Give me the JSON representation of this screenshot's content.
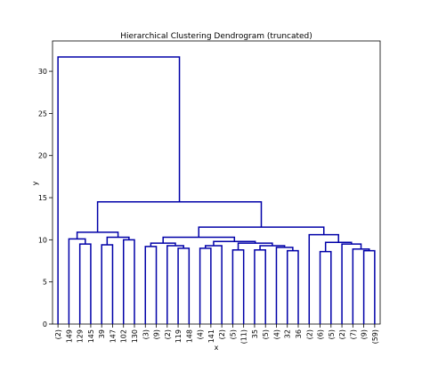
{
  "chart_data": {
    "type": "dendrogram",
    "title": "Hierarchical Clustering Dendrogram (truncated)",
    "x_label": "x",
    "y_label": "y",
    "leaves": [
      "(2)",
      "149",
      "129",
      "145",
      "39",
      "147",
      "102",
      "130",
      "(3)",
      "(9)",
      "(2)",
      "119",
      "148",
      "(4)",
      "141",
      "(2)",
      "(5)",
      "(11)",
      "35",
      "(5)",
      "(4)",
      "32",
      "36",
      "(2)",
      "(6)",
      "(5)",
      "(2)",
      "(7)",
      "(9)",
      "(59)"
    ],
    "linkage": [
      [
        2,
        3,
        9.5
      ],
      [
        1,
        30,
        10.1
      ],
      [
        4,
        5,
        9.4
      ],
      [
        6,
        7,
        10.0
      ],
      [
        32,
        33,
        10.3
      ],
      [
        31,
        34,
        10.9
      ],
      [
        8,
        9,
        9.2
      ],
      [
        11,
        12,
        9.0
      ],
      [
        10,
        37,
        9.3
      ],
      [
        36,
        38,
        9.6
      ],
      [
        13,
        14,
        9.0
      ],
      [
        40,
        15,
        9.3
      ],
      [
        16,
        17,
        8.8
      ],
      [
        18,
        19,
        8.8
      ],
      [
        21,
        22,
        8.7
      ],
      [
        20,
        44,
        9.1
      ],
      [
        43,
        45,
        9.3
      ],
      [
        42,
        46,
        9.6
      ],
      [
        41,
        47,
        9.8
      ],
      [
        39,
        48,
        10.3
      ],
      [
        24,
        25,
        8.6
      ],
      [
        28,
        29,
        8.7
      ],
      [
        27,
        51,
        8.9
      ],
      [
        26,
        52,
        9.5
      ],
      [
        50,
        53,
        9.7
      ],
      [
        23,
        54,
        10.6
      ],
      [
        49,
        55,
        11.5
      ],
      [
        35,
        56,
        14.5
      ],
      [
        0,
        57,
        31.7
      ]
    ],
    "color": "#0000a8",
    "ylim": [
      0,
      33.6
    ],
    "yticks": [
      0,
      5,
      10,
      15,
      20,
      25,
      30
    ]
  }
}
